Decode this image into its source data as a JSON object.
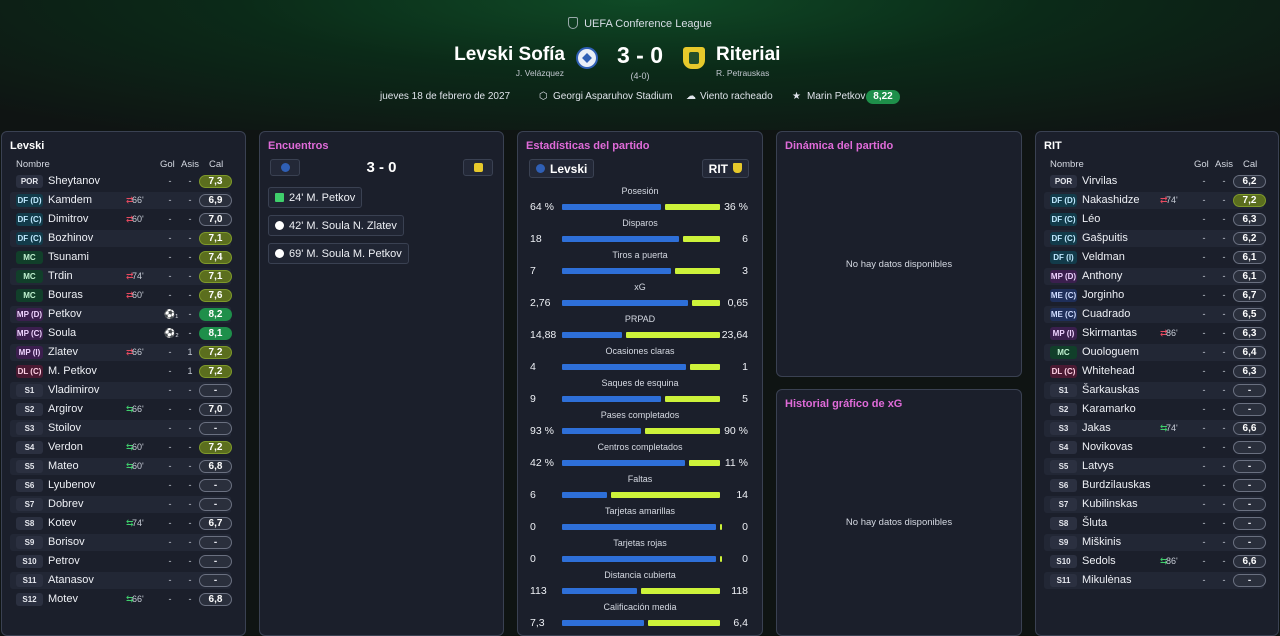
{
  "header": {
    "competition": "UEFA Conference League",
    "home_team": "Levski Sofía",
    "away_team": "Riteriai",
    "score": "3 - 0",
    "aggregate": "(4-0)",
    "home_coach": "J. Velázquez",
    "away_coach": "R. Petrauskas",
    "date": "jueves 18 de febrero de 2027",
    "stadium": "Georgi Asparuhov Stadium",
    "weather": "Viento racheado",
    "mvp_name": "Marin Petkov",
    "mvp_rating": "8,22"
  },
  "home_lineup": {
    "title": "Levski",
    "col_name": "Nombre",
    "col_goals": "Gol",
    "col_assists": "Asis",
    "col_rating": "Cal",
    "players": [
      {
        "pos": "POR",
        "pc": "gk",
        "name": "Sheytanov",
        "sub": "",
        "dir": "",
        "gol": "-",
        "asis": "-",
        "rat": "7,3",
        "rc": "g1",
        "icon": ""
      },
      {
        "pos": "DF (D)",
        "pc": "df",
        "name": "Kamdem",
        "sub": "66'",
        "dir": "out",
        "gol": "-",
        "asis": "-",
        "rat": "6,9",
        "rc": "",
        "icon": ""
      },
      {
        "pos": "DF (C)",
        "pc": "df",
        "name": "Dimitrov",
        "sub": "60'",
        "dir": "out",
        "gol": "-",
        "asis": "-",
        "rat": "7,0",
        "rc": "",
        "icon": ""
      },
      {
        "pos": "DF (C)",
        "pc": "df",
        "name": "Bozhinov",
        "sub": "",
        "dir": "",
        "gol": "-",
        "asis": "-",
        "rat": "7,1",
        "rc": "g1",
        "icon": ""
      },
      {
        "pos": "MC",
        "pc": "mc",
        "name": "Tsunami",
        "sub": "",
        "dir": "",
        "gol": "-",
        "asis": "-",
        "rat": "7,4",
        "rc": "g1",
        "icon": ""
      },
      {
        "pos": "MC",
        "pc": "mc",
        "name": "Trdin",
        "sub": "74'",
        "dir": "out",
        "gol": "-",
        "asis": "-",
        "rat": "7,1",
        "rc": "g1",
        "icon": ""
      },
      {
        "pos": "MC",
        "pc": "mc",
        "name": "Bouras",
        "sub": "60'",
        "dir": "out",
        "gol": "-",
        "asis": "-",
        "rat": "7,6",
        "rc": "g1",
        "icon": ""
      },
      {
        "pos": "MP (D)",
        "pc": "mp",
        "name": "Petkov",
        "sub": "",
        "dir": "",
        "gol": "",
        "asis": "-",
        "rat": "8,2",
        "rc": "g2",
        "icon": "⚽₁"
      },
      {
        "pos": "MP (C)",
        "pc": "mp",
        "name": "Soula",
        "sub": "",
        "dir": "",
        "gol": "",
        "asis": "-",
        "rat": "8,1",
        "rc": "g2",
        "icon": "⚽₂"
      },
      {
        "pos": "MP (I)",
        "pc": "mp",
        "name": "Zlatev",
        "sub": "66'",
        "dir": "out",
        "gol": "-",
        "asis": "1",
        "rat": "7,2",
        "rc": "g1",
        "icon": ""
      },
      {
        "pos": "DL (C)",
        "pc": "dl",
        "name": "M. Petkov",
        "sub": "",
        "dir": "",
        "gol": "-",
        "asis": "1",
        "rat": "7,2",
        "rc": "g1",
        "icon": ""
      },
      {
        "pos": "S1",
        "pc": "s",
        "name": "Vladimirov",
        "sub": "",
        "dir": "",
        "gol": "-",
        "asis": "-",
        "rat": "-",
        "rc": "dash",
        "icon": ""
      },
      {
        "pos": "S2",
        "pc": "s",
        "name": "Argirov",
        "sub": "66'",
        "dir": "in",
        "gol": "-",
        "asis": "-",
        "rat": "7,0",
        "rc": "",
        "icon": ""
      },
      {
        "pos": "S3",
        "pc": "s",
        "name": "Stoilov",
        "sub": "",
        "dir": "",
        "gol": "-",
        "asis": "-",
        "rat": "-",
        "rc": "dash",
        "icon": ""
      },
      {
        "pos": "S4",
        "pc": "s",
        "name": "Verdon",
        "sub": "60'",
        "dir": "in",
        "gol": "-",
        "asis": "-",
        "rat": "7,2",
        "rc": "g1",
        "icon": ""
      },
      {
        "pos": "S5",
        "pc": "s",
        "name": "Mateo",
        "sub": "60'",
        "dir": "in",
        "gol": "-",
        "asis": "-",
        "rat": "6,8",
        "rc": "",
        "icon": ""
      },
      {
        "pos": "S6",
        "pc": "s",
        "name": "Lyubenov",
        "sub": "",
        "dir": "",
        "gol": "-",
        "asis": "-",
        "rat": "-",
        "rc": "dash",
        "icon": ""
      },
      {
        "pos": "S7",
        "pc": "s",
        "name": "Dobrev",
        "sub": "",
        "dir": "",
        "gol": "-",
        "asis": "-",
        "rat": "-",
        "rc": "dash",
        "icon": ""
      },
      {
        "pos": "S8",
        "pc": "s",
        "name": "Kotev",
        "sub": "74'",
        "dir": "in",
        "gol": "-",
        "asis": "-",
        "rat": "6,7",
        "rc": "",
        "icon": ""
      },
      {
        "pos": "S9",
        "pc": "s",
        "name": "Borisov",
        "sub": "",
        "dir": "",
        "gol": "-",
        "asis": "-",
        "rat": "-",
        "rc": "dash",
        "icon": ""
      },
      {
        "pos": "S10",
        "pc": "s",
        "name": "Petrov",
        "sub": "",
        "dir": "",
        "gol": "-",
        "asis": "-",
        "rat": "-",
        "rc": "dash",
        "icon": ""
      },
      {
        "pos": "S11",
        "pc": "s",
        "name": "Atanasov",
        "sub": "",
        "dir": "",
        "gol": "-",
        "asis": "-",
        "rat": "-",
        "rc": "dash",
        "icon": ""
      },
      {
        "pos": "S12",
        "pc": "s",
        "name": "Motev",
        "sub": "66'",
        "dir": "in",
        "gol": "-",
        "asis": "-",
        "rat": "6,8",
        "rc": "",
        "icon": ""
      }
    ]
  },
  "away_lineup": {
    "title": "RIT",
    "col_name": "Nombre",
    "col_goals": "Gol",
    "col_assists": "Asis",
    "col_rating": "Cal",
    "players": [
      {
        "pos": "POR",
        "pc": "gk",
        "name": "Virvilas",
        "sub": "",
        "dir": "",
        "gol": "-",
        "asis": "-",
        "rat": "6,2",
        "rc": "",
        "icon": ""
      },
      {
        "pos": "DF (D)",
        "pc": "df",
        "name": "Nakashidze",
        "sub": "74'",
        "dir": "out",
        "gol": "-",
        "asis": "-",
        "rat": "7,2",
        "rc": "g1",
        "icon": ""
      },
      {
        "pos": "DF (C)",
        "pc": "df",
        "name": "Léo",
        "sub": "",
        "dir": "",
        "gol": "-",
        "asis": "-",
        "rat": "6,3",
        "rc": "",
        "icon": ""
      },
      {
        "pos": "DF (C)",
        "pc": "df",
        "name": "Gašpuitis",
        "sub": "",
        "dir": "",
        "gol": "-",
        "asis": "-",
        "rat": "6,2",
        "rc": "",
        "icon": ""
      },
      {
        "pos": "DF (I)",
        "pc": "df",
        "name": "Veldman",
        "sub": "",
        "dir": "",
        "gol": "-",
        "asis": "-",
        "rat": "6,1",
        "rc": "",
        "icon": ""
      },
      {
        "pos": "MP (D)",
        "pc": "mp",
        "name": "Anthony",
        "sub": "",
        "dir": "",
        "gol": "-",
        "asis": "-",
        "rat": "6,1",
        "rc": "",
        "icon": ""
      },
      {
        "pos": "ME (C)",
        "pc": "me",
        "name": "Jorginho",
        "sub": "",
        "dir": "",
        "gol": "-",
        "asis": "-",
        "rat": "6,7",
        "rc": "",
        "icon": ""
      },
      {
        "pos": "ME (C)",
        "pc": "me",
        "name": "Cuadrado",
        "sub": "",
        "dir": "",
        "gol": "-",
        "asis": "-",
        "rat": "6,5",
        "rc": "",
        "icon": ""
      },
      {
        "pos": "MP (I)",
        "pc": "mp",
        "name": "Skirmantas",
        "sub": "86'",
        "dir": "out",
        "gol": "-",
        "asis": "-",
        "rat": "6,3",
        "rc": "",
        "icon": ""
      },
      {
        "pos": "MC",
        "pc": "mc",
        "name": "Ouologuem",
        "sub": "",
        "dir": "",
        "gol": "-",
        "asis": "-",
        "rat": "6,4",
        "rc": "",
        "icon": ""
      },
      {
        "pos": "DL (C)",
        "pc": "dl",
        "name": "Whitehead",
        "sub": "",
        "dir": "",
        "gol": "-",
        "asis": "-",
        "rat": "6,3",
        "rc": "",
        "icon": ""
      },
      {
        "pos": "S1",
        "pc": "s",
        "name": "Šarkauskas",
        "sub": "",
        "dir": "",
        "gol": "-",
        "asis": "-",
        "rat": "-",
        "rc": "dash",
        "icon": ""
      },
      {
        "pos": "S2",
        "pc": "s",
        "name": "Karamarko",
        "sub": "",
        "dir": "",
        "gol": "-",
        "asis": "-",
        "rat": "-",
        "rc": "dash",
        "icon": ""
      },
      {
        "pos": "S3",
        "pc": "s",
        "name": "Jakas",
        "sub": "74'",
        "dir": "in",
        "gol": "-",
        "asis": "-",
        "rat": "6,6",
        "rc": "",
        "icon": ""
      },
      {
        "pos": "S4",
        "pc": "s",
        "name": "Novikovas",
        "sub": "",
        "dir": "",
        "gol": "-",
        "asis": "-",
        "rat": "-",
        "rc": "dash",
        "icon": ""
      },
      {
        "pos": "S5",
        "pc": "s",
        "name": "Latvys",
        "sub": "",
        "dir": "",
        "gol": "-",
        "asis": "-",
        "rat": "-",
        "rc": "dash",
        "icon": ""
      },
      {
        "pos": "S6",
        "pc": "s",
        "name": "Burdzilauskas",
        "sub": "",
        "dir": "",
        "gol": "-",
        "asis": "-",
        "rat": "-",
        "rc": "dash",
        "icon": ""
      },
      {
        "pos": "S7",
        "pc": "s",
        "name": "Kubilinskas",
        "sub": "",
        "dir": "",
        "gol": "-",
        "asis": "-",
        "rat": "-",
        "rc": "dash",
        "icon": ""
      },
      {
        "pos": "S8",
        "pc": "s",
        "name": "Šluta",
        "sub": "",
        "dir": "",
        "gol": "-",
        "asis": "-",
        "rat": "-",
        "rc": "dash",
        "icon": ""
      },
      {
        "pos": "S9",
        "pc": "s",
        "name": "Miškinis",
        "sub": "",
        "dir": "",
        "gol": "-",
        "asis": "-",
        "rat": "-",
        "rc": "dash",
        "icon": ""
      },
      {
        "pos": "S10",
        "pc": "s",
        "name": "Sedols",
        "sub": "86'",
        "dir": "in",
        "gol": "-",
        "asis": "-",
        "rat": "6,6",
        "rc": "",
        "icon": ""
      },
      {
        "pos": "S11",
        "pc": "s",
        "name": "Mikulėnas",
        "sub": "",
        "dir": "",
        "gol": "-",
        "asis": "-",
        "rat": "-",
        "rc": "dash",
        "icon": ""
      }
    ]
  },
  "encounters": {
    "title": "Encuentros",
    "score": "3 - 0",
    "events": [
      {
        "type": "sq",
        "text": "24'  M. Petkov"
      },
      {
        "type": "ball",
        "text": "42'  M. Soula  N. Zlatev"
      },
      {
        "type": "ball",
        "text": "69'  M. Soula  M. Petkov"
      }
    ]
  },
  "stats": {
    "title": "Estadísticas del partido",
    "home_label": "Levski",
    "away_label": "RIT",
    "rows": [
      {
        "label": "Posesión",
        "h": "64 %",
        "a": "36 %",
        "hf": 0.64
      },
      {
        "label": "Disparos",
        "h": "18",
        "a": "6",
        "hf": 0.75
      },
      {
        "label": "Tiros a puerta",
        "h": "7",
        "a": "3",
        "hf": 0.7
      },
      {
        "label": "xG",
        "h": "2,76",
        "a": "0,65",
        "hf": 0.81
      },
      {
        "label": "PRPAD",
        "h": "14,88",
        "a": "23,64",
        "hf": 0.39
      },
      {
        "label": "Ocasiones claras",
        "h": "4",
        "a": "1",
        "hf": 0.8
      },
      {
        "label": "Saques de esquina",
        "h": "9",
        "a": "5",
        "hf": 0.64
      },
      {
        "label": "Pases completados",
        "h": "93 %",
        "a": "90 %",
        "hf": 0.51
      },
      {
        "label": "Centros completados",
        "h": "42 %",
        "a": "11 %",
        "hf": 0.79
      },
      {
        "label": "Faltas",
        "h": "6",
        "a": "14",
        "hf": 0.3
      },
      {
        "label": "Tarjetas amarillas",
        "h": "0",
        "a": "0",
        "hf": 0.99
      },
      {
        "label": "Tarjetas rojas",
        "h": "0",
        "a": "0",
        "hf": 0.99
      },
      {
        "label": "Distancia cubierta",
        "h": "113",
        "a": "118",
        "hf": 0.49
      },
      {
        "label": "Calificación media",
        "h": "7,3",
        "a": "6,4",
        "hf": 0.53
      }
    ]
  },
  "dynamics": {
    "title": "Dinámica del partido",
    "empty": "No hay datos disponibles"
  },
  "xg_history": {
    "title": "Historial gráfico de xG",
    "empty": "No hay datos disponibles"
  },
  "colors": {
    "home_bar": "#2e6fd8",
    "away_bar": "#cdf23a",
    "accent_title": "#e06bd9",
    "mvp_pill": "#1e8f4a"
  }
}
